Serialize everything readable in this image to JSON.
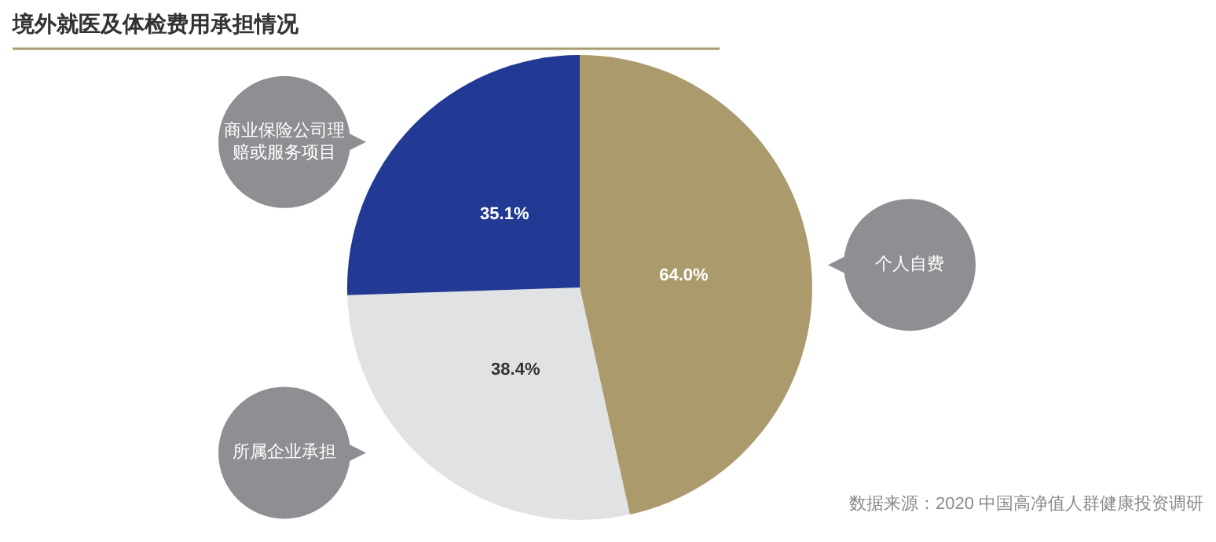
{
  "chart_data": {
    "type": "pie",
    "title": "境外就医及体检费用承担情况",
    "categories": [
      "个人自费",
      "所属企业承担",
      "商业保险公司理赔或服务项目"
    ],
    "values": [
      64.0,
      38.4,
      35.1
    ],
    "colors": [
      "#ab9a6b",
      "#e1e2e4",
      "#223a93"
    ],
    "value_labels": [
      "64.0%",
      "38.4%",
      "35.1%"
    ],
    "annotations": [
      "数据来源：2020 中国高净值人群健康投资调研"
    ]
  }
}
